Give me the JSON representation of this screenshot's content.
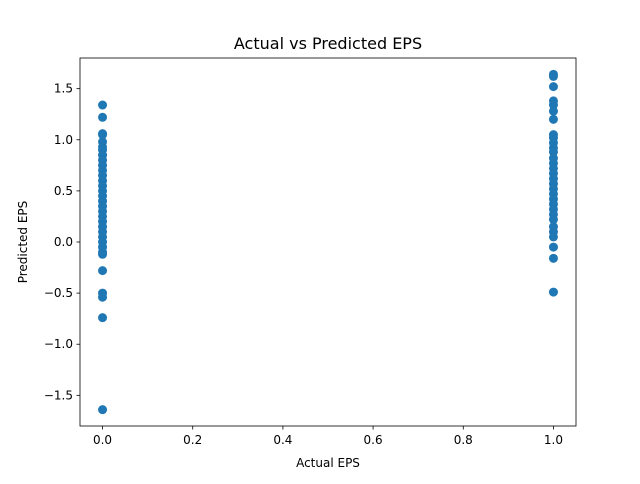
{
  "chart_data": {
    "type": "scatter",
    "title": "Actual vs Predicted EPS",
    "x_label": "Actual EPS",
    "y_label": "Predicted EPS",
    "color": "#1f77b4",
    "grid": false,
    "x": [
      0,
      0,
      0,
      0,
      0,
      0,
      0,
      0,
      0,
      0,
      0,
      0,
      0,
      0,
      0,
      0,
      0,
      0,
      0,
      0,
      0,
      0,
      0,
      0,
      0,
      0,
      0,
      0,
      0,
      0,
      0,
      0,
      0,
      1,
      1,
      1,
      1,
      1,
      1,
      1,
      1,
      1,
      1,
      1,
      1,
      1,
      1,
      1,
      1,
      1,
      1,
      1,
      1,
      1,
      1,
      1,
      1,
      1,
      1,
      1,
      1,
      1,
      1,
      1
    ],
    "values": [
      1.34,
      1.22,
      1.06,
      1.05,
      0.98,
      0.93,
      0.9,
      0.85,
      0.8,
      0.75,
      0.7,
      0.65,
      0.6,
      0.55,
      0.5,
      0.45,
      0.4,
      0.35,
      0.3,
      0.25,
      0.2,
      0.15,
      0.1,
      0.05,
      0.0,
      -0.05,
      -0.1,
      -0.12,
      -0.28,
      -0.5,
      -0.54,
      -0.74,
      -1.64,
      1.64,
      1.62,
      1.52,
      1.38,
      1.34,
      1.28,
      1.2,
      1.05,
      1.02,
      0.97,
      0.92,
      0.88,
      0.82,
      0.77,
      0.72,
      0.67,
      0.62,
      0.57,
      0.52,
      0.47,
      0.42,
      0.37,
      0.32,
      0.27,
      0.22,
      0.15,
      0.1,
      0.05,
      -0.05,
      -0.16,
      -0.49
    ],
    "xlim": [
      -0.05,
      1.05
    ],
    "ylim": [
      -1.8,
      1.8
    ],
    "xticks": [
      {
        "value": 0,
        "label": "0.0"
      },
      0.2,
      0.4,
      0.6,
      0.8,
      {
        "value": 1,
        "label": "1.0"
      }
    ],
    "yticks": [
      {
        "value": -1.5,
        "label": "−1.5"
      },
      {
        "value": -1,
        "label": "−1.0"
      },
      {
        "value": -0.5,
        "label": "−0.5"
      },
      {
        "value": 0,
        "label": "0.0"
      },
      0.5,
      {
        "value": 1,
        "label": "1.0"
      },
      1.5
    ]
  }
}
